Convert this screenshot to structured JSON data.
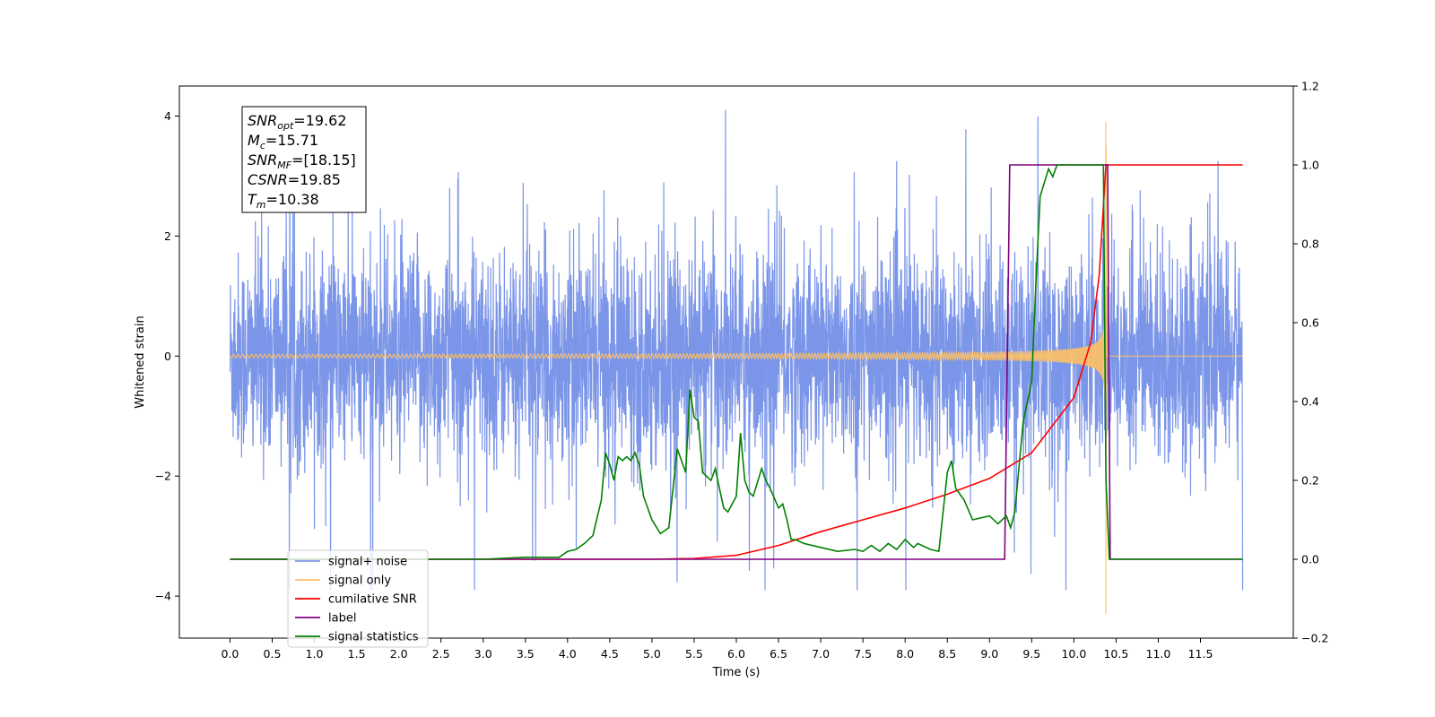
{
  "chart_data": {
    "type": "line",
    "xlabel": "Time (s)",
    "ylabel_left": "Whitened strain",
    "ylabel_right": "",
    "xlim": [
      -0.6,
      12.6
    ],
    "ylim_left": [
      -4.7,
      4.5
    ],
    "ylim_right": [
      -0.2,
      1.2
    ],
    "x_ticks": [
      0.0,
      0.5,
      1.0,
      1.5,
      2.0,
      2.5,
      3.0,
      3.5,
      4.0,
      4.5,
      5.0,
      5.5,
      6.0,
      6.5,
      7.0,
      7.5,
      8.0,
      8.5,
      9.0,
      9.5,
      10.0,
      10.5,
      11.0,
      11.5
    ],
    "x_tick_labels": [
      "0.0",
      "0.5",
      "1.0",
      "1.5",
      "2.0",
      "2.5",
      "3.0",
      "3.5",
      "4.0",
      "4.5",
      "5.0",
      "5.5",
      "6.0",
      "6.5",
      "7.0",
      "7.5",
      "8.0",
      "8.5",
      "9.0",
      "9.5",
      "10.0",
      "10.5",
      "11.0",
      "11.5"
    ],
    "y_left_ticks": [
      -4,
      -2,
      0,
      2,
      4
    ],
    "y_left_tick_labels": [
      "−4",
      "−2",
      "0",
      "2",
      "4"
    ],
    "y_right_ticks": [
      -0.2,
      0.0,
      0.2,
      0.4,
      0.6,
      0.8,
      1.0,
      1.2
    ],
    "y_right_tick_labels": [
      "−0.2",
      "0.0",
      "0.2",
      "0.4",
      "0.6",
      "0.8",
      "1.0",
      "1.2"
    ],
    "grid": false,
    "legend_position": "bottom-left",
    "annotation": {
      "lines": [
        {
          "base": "SNR",
          "sub": "opt",
          "value": "=19.62"
        },
        {
          "base": "M",
          "sub": "c",
          "value": "=15.71"
        },
        {
          "base": "SNR",
          "sub": "MF",
          "value": "=[18.15]"
        },
        {
          "base": "CSNR",
          "sub": "",
          "value": "=19.85"
        },
        {
          "base": "T",
          "sub": "m",
          "value": "=10.38"
        }
      ]
    },
    "series": [
      {
        "name": "signal+ noise",
        "axis": "left",
        "color": "#7b95e8",
        "kind": "noise",
        "x_range": [
          0.0,
          12.0
        ],
        "typical_range": [
          -1.6,
          1.6
        ],
        "peak_range": [
          -3.9,
          4.1
        ]
      },
      {
        "name": "signal only",
        "axis": "left",
        "color": "#ffc163",
        "kind": "chirp",
        "x_range": [
          0.0,
          12.0
        ],
        "merger_time": 10.38,
        "peak_amplitude": [
          -4.3,
          3.9
        ]
      },
      {
        "name": "cumilative SNR",
        "axis": "right",
        "color": "#ff0000",
        "x": [
          0.0,
          5.0,
          5.5,
          6.0,
          6.5,
          7.0,
          7.5,
          8.0,
          8.5,
          9.0,
          9.5,
          10.0,
          10.2,
          10.3,
          10.38,
          12.0
        ],
        "y": [
          0.0,
          0.0,
          0.002,
          0.01,
          0.035,
          0.07,
          0.1,
          0.13,
          0.165,
          0.205,
          0.27,
          0.41,
          0.55,
          0.72,
          1.0,
          1.0
        ]
      },
      {
        "name": "label",
        "axis": "right",
        "color": "#800080",
        "x": [
          0.0,
          9.18,
          9.24,
          10.4,
          10.43,
          12.0
        ],
        "y": [
          0.0,
          0.0,
          1.0,
          1.0,
          0.0,
          0.0
        ]
      },
      {
        "name": "signal statistics",
        "axis": "right",
        "color": "#008000",
        "x": [
          0.0,
          3.0,
          3.5,
          3.9,
          4.0,
          4.1,
          4.2,
          4.3,
          4.4,
          4.45,
          4.5,
          4.55,
          4.6,
          4.65,
          4.7,
          4.75,
          4.8,
          4.85,
          4.9,
          5.0,
          5.1,
          5.2,
          5.3,
          5.35,
          5.4,
          5.45,
          5.5,
          5.55,
          5.6,
          5.7,
          5.75,
          5.8,
          5.85,
          5.9,
          6.0,
          6.05,
          6.1,
          6.15,
          6.2,
          6.3,
          6.35,
          6.4,
          6.5,
          6.55,
          6.6,
          6.65,
          6.7,
          6.8,
          7.0,
          7.2,
          7.4,
          7.5,
          7.6,
          7.7,
          7.8,
          7.9,
          8.0,
          8.1,
          8.15,
          8.2,
          8.3,
          8.4,
          8.5,
          8.55,
          8.6,
          8.7,
          8.8,
          9.0,
          9.1,
          9.2,
          9.25,
          9.3,
          9.4,
          9.5,
          9.55,
          9.6,
          9.7,
          9.75,
          9.8,
          9.9,
          10.0,
          10.3,
          10.35,
          10.38,
          10.42,
          12.0
        ],
        "y": [
          0.0,
          0.0,
          0.005,
          0.005,
          0.02,
          0.025,
          0.04,
          0.06,
          0.15,
          0.27,
          0.24,
          0.2,
          0.26,
          0.25,
          0.26,
          0.25,
          0.27,
          0.24,
          0.16,
          0.1,
          0.065,
          0.08,
          0.28,
          0.25,
          0.22,
          0.43,
          0.36,
          0.35,
          0.22,
          0.2,
          0.23,
          0.18,
          0.13,
          0.12,
          0.16,
          0.32,
          0.2,
          0.17,
          0.16,
          0.23,
          0.2,
          0.18,
          0.13,
          0.14,
          0.1,
          0.05,
          0.05,
          0.04,
          0.03,
          0.02,
          0.025,
          0.02,
          0.035,
          0.02,
          0.04,
          0.025,
          0.05,
          0.03,
          0.04,
          0.035,
          0.025,
          0.02,
          0.22,
          0.25,
          0.18,
          0.15,
          0.1,
          0.11,
          0.09,
          0.11,
          0.08,
          0.12,
          0.35,
          0.45,
          0.7,
          0.92,
          0.99,
          0.97,
          1.0,
          1.0,
          1.0,
          1.0,
          1.0,
          0.2,
          0.0,
          0.0
        ]
      }
    ]
  }
}
